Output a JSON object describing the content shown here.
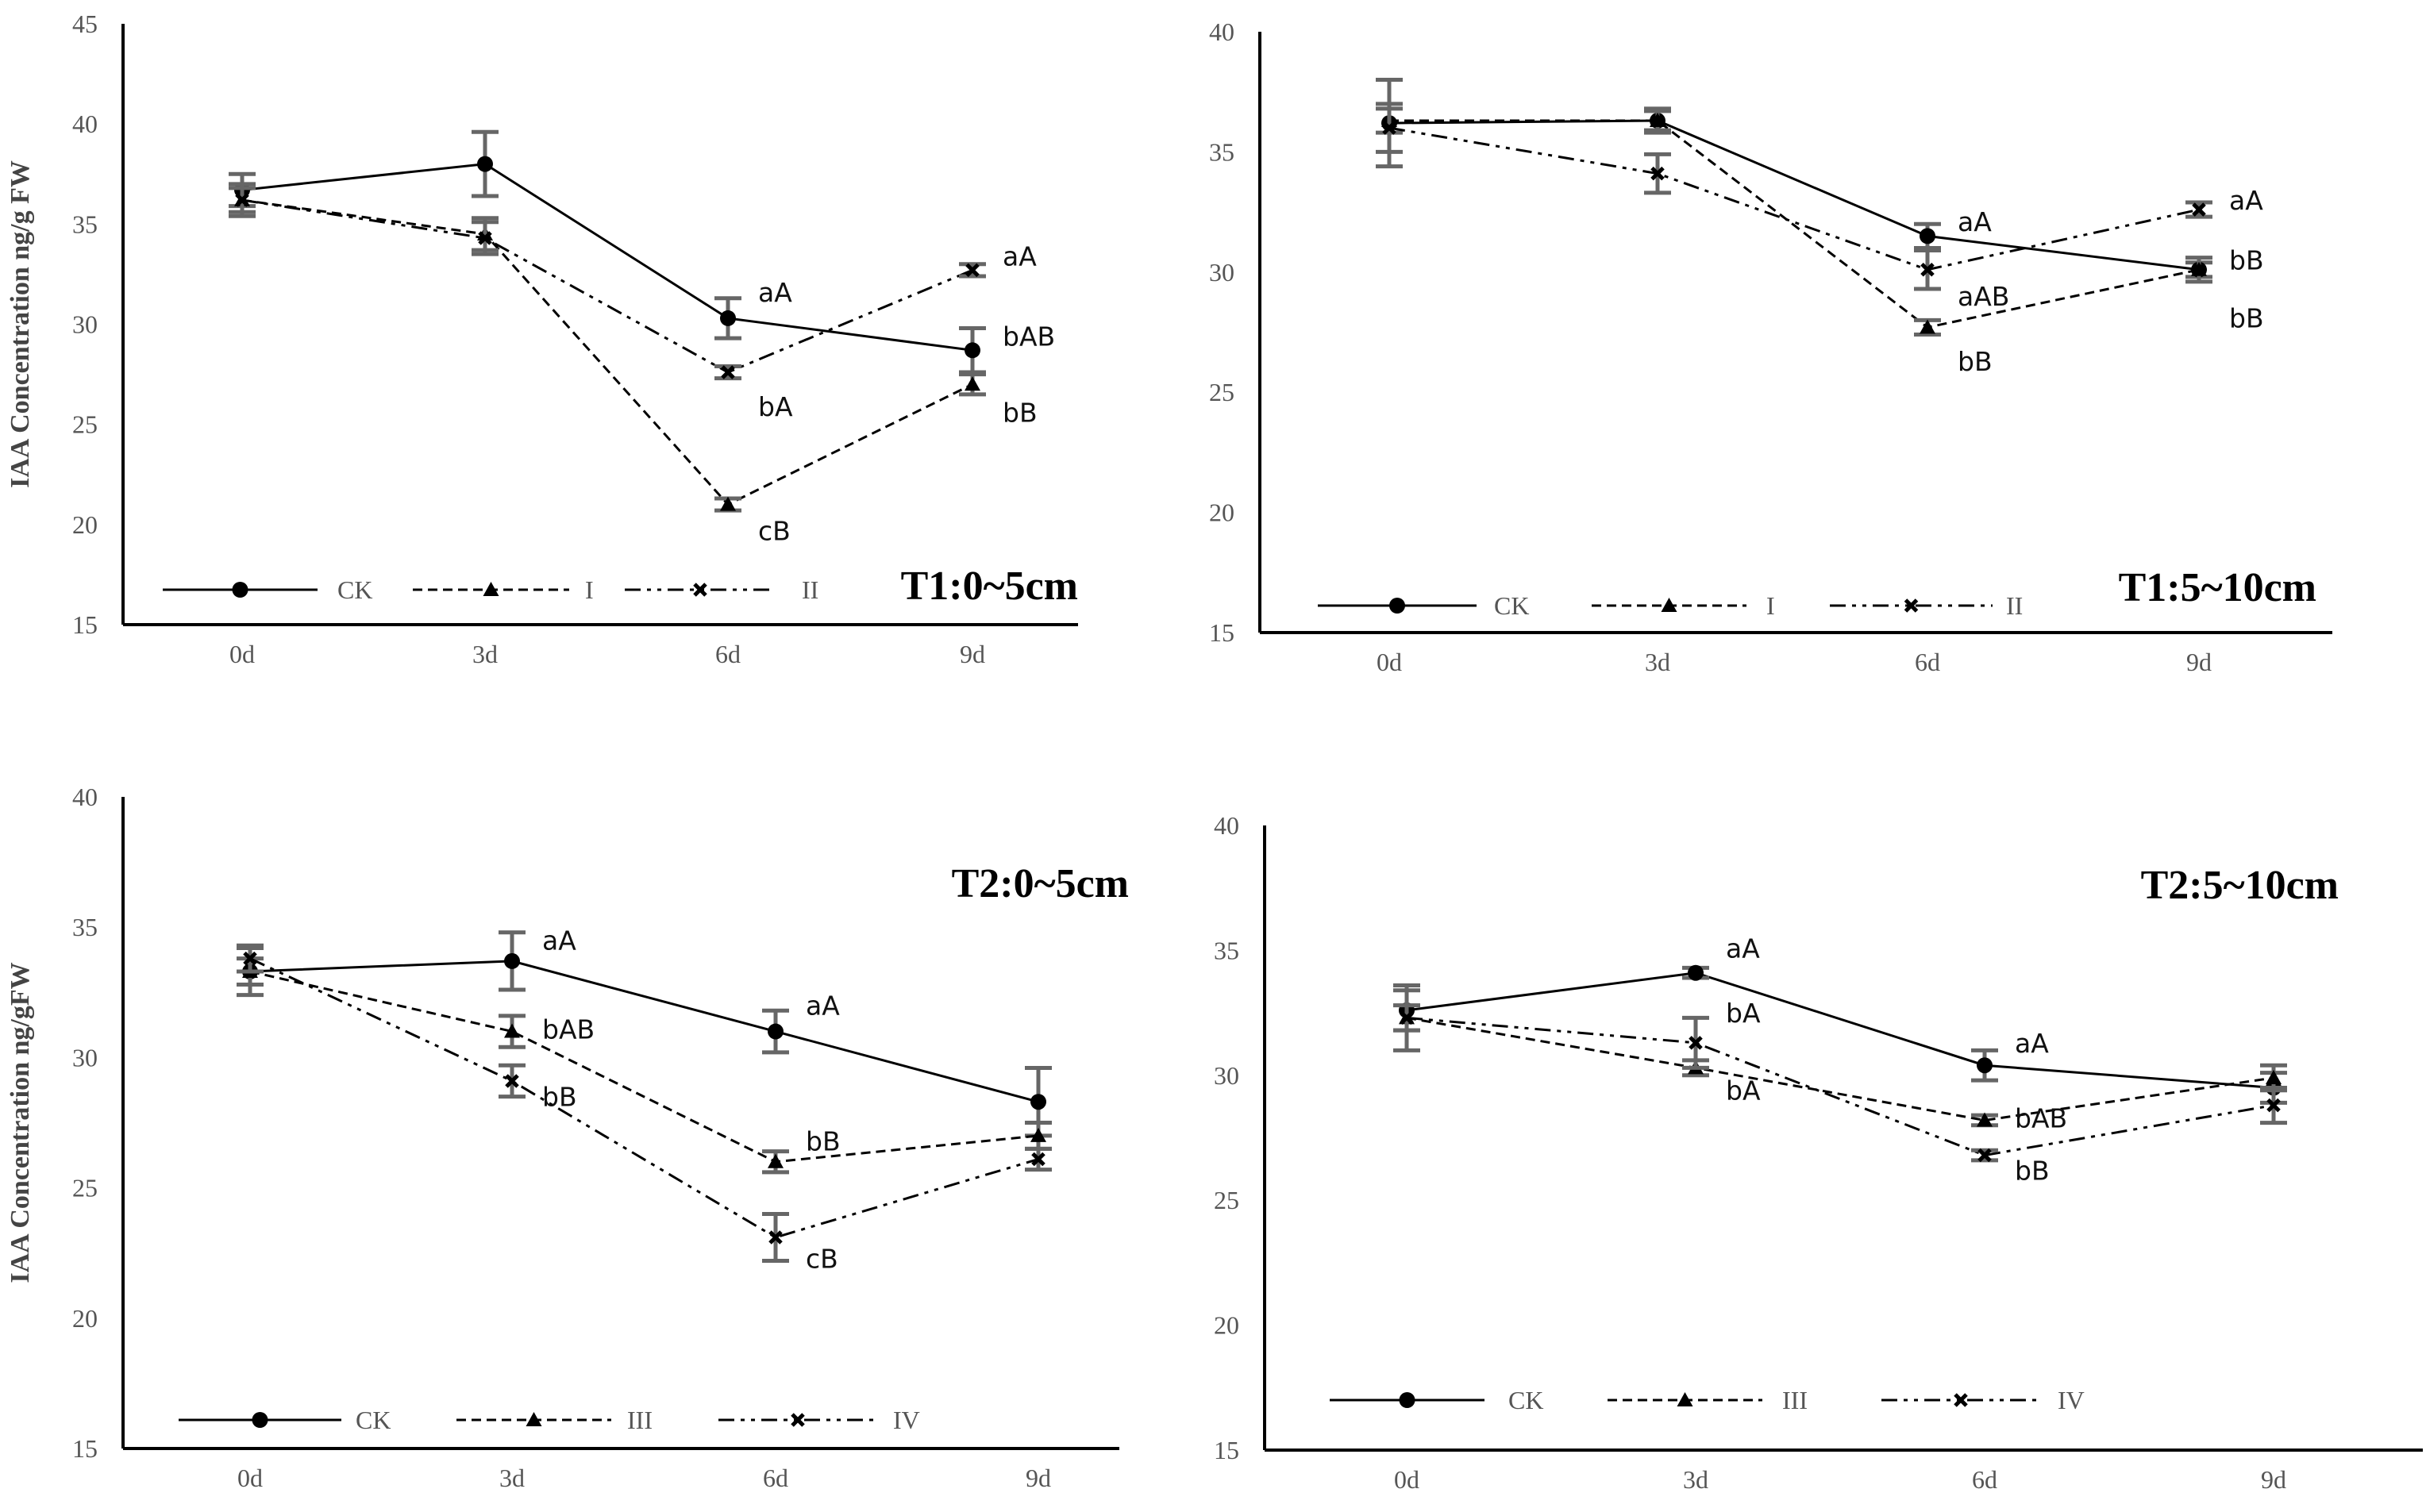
{
  "chart_data": [
    {
      "type": "line",
      "title": "T1:0~5cm",
      "ylabel": "IAA Concentration ng/g FW",
      "xlabel": "",
      "categories": [
        "0d",
        "3d",
        "6d",
        "9d"
      ],
      "yticks": [
        "15",
        "20",
        "25",
        "30",
        "35",
        "40",
        "45"
      ],
      "ylim": [
        15,
        45
      ],
      "series": [
        {
          "name": "CK",
          "values": [
            36.7,
            38.0,
            30.3,
            28.7
          ],
          "errors": [
            0.8,
            1.6,
            1.0,
            1.1
          ],
          "style": "solid",
          "marker": "circle"
        },
        {
          "name": "I",
          "values": [
            36.2,
            34.5,
            21.0,
            27.0
          ],
          "errors": [
            0.6,
            0.8,
            0.3,
            0.5
          ],
          "style": "dashed",
          "marker": "triangle"
        },
        {
          "name": "II",
          "values": [
            36.2,
            34.3,
            27.6,
            32.7
          ],
          "errors": [
            0.8,
            0.8,
            0.3,
            0.3
          ],
          "style": "dashdotdot",
          "marker": "x"
        }
      ],
      "annotations": [
        {
          "text": "aA",
          "x": 2,
          "y": 31.6
        },
        {
          "text": "bA",
          "x": 2,
          "y": 25.9
        },
        {
          "text": "cB",
          "x": 2,
          "y": 19.7
        },
        {
          "text": "aA",
          "x": 3,
          "y": 33.4
        },
        {
          "text": "bAB",
          "x": 3,
          "y": 29.4
        },
        {
          "text": "bB",
          "x": 3,
          "y": 25.6
        }
      ],
      "legend": [
        "CK",
        "I",
        "II"
      ]
    },
    {
      "type": "line",
      "title": "T1:5~10cm",
      "ylabel": "",
      "xlabel": "",
      "categories": [
        "0d",
        "3d",
        "6d",
        "9d"
      ],
      "yticks": [
        "15",
        "20",
        "25",
        "30",
        "35",
        "40"
      ],
      "ylim": [
        15,
        40
      ],
      "series": [
        {
          "name": "CK",
          "values": [
            36.2,
            36.3,
            31.5,
            30.1
          ],
          "errors": [
            1.8,
            0.5,
            0.5,
            0.3
          ],
          "style": "solid",
          "marker": "circle"
        },
        {
          "name": "I",
          "values": [
            36.3,
            36.3,
            27.7,
            30.1
          ],
          "errors": [
            0.5,
            0.4,
            0.3,
            0.5
          ],
          "style": "dashed",
          "marker": "triangle"
        },
        {
          "name": "II",
          "values": [
            36.0,
            34.1,
            30.1,
            32.6
          ],
          "errors": [
            1.0,
            0.8,
            0.8,
            0.3
          ],
          "style": "dashdotdot",
          "marker": "x"
        }
      ],
      "annotations": [
        {
          "text": "aA",
          "x": 2,
          "y": 32.1
        },
        {
          "text": "aAB",
          "x": 2,
          "y": 29.0
        },
        {
          "text": "bB",
          "x": 2,
          "y": 26.3
        },
        {
          "text": "aA",
          "x": 3,
          "y": 33.0
        },
        {
          "text": "bB",
          "x": 3,
          "y": 30.5
        },
        {
          "text": "bB",
          "x": 3,
          "y": 28.1
        }
      ],
      "legend": [
        "CK",
        "I",
        "II"
      ]
    },
    {
      "type": "line",
      "title": "T2:0~5cm",
      "ylabel": "IAA Concentration ng/gFW",
      "xlabel": "",
      "categories": [
        "0d",
        "3d",
        "6d",
        "9d"
      ],
      "yticks": [
        "15",
        "20",
        "25",
        "30",
        "35",
        "40"
      ],
      "ylim": [
        15,
        40
      ],
      "series": [
        {
          "name": "CK",
          "values": [
            33.3,
            33.7,
            31.0,
            28.3
          ],
          "errors": [
            0.5,
            1.1,
            0.8,
            1.3
          ],
          "style": "solid",
          "marker": "circle"
        },
        {
          "name": "III",
          "values": [
            33.3,
            31.0,
            26.0,
            27.0
          ],
          "errors": [
            0.9,
            0.6,
            0.4,
            0.5
          ],
          "style": "dashed",
          "marker": "triangle"
        },
        {
          "name": "IV",
          "values": [
            33.8,
            29.1,
            23.1,
            26.1
          ],
          "errors": [
            0.5,
            0.6,
            0.9,
            0.4
          ],
          "style": "dashdotdot",
          "marker": "x"
        }
      ],
      "annotations": [
        {
          "text": "aA",
          "x": 1,
          "y": 34.5
        },
        {
          "text": "bAB",
          "x": 1,
          "y": 31.1
        },
        {
          "text": "bB",
          "x": 1,
          "y": 28.5
        },
        {
          "text": "aA",
          "x": 2,
          "y": 32.0
        },
        {
          "text": "bB",
          "x": 2,
          "y": 26.8
        },
        {
          "text": "cB",
          "x": 2,
          "y": 22.3
        }
      ],
      "legend": [
        "CK",
        "III",
        "IV"
      ]
    },
    {
      "type": "line",
      "title": "T2:5~10cm",
      "ylabel": "",
      "xlabel": "",
      "categories": [
        "0d",
        "3d",
        "6d",
        "9d"
      ],
      "yticks": [
        "15",
        "20",
        "25",
        "30",
        "35",
        "40"
      ],
      "ylim": [
        15,
        40
      ],
      "series": [
        {
          "name": "CK",
          "values": [
            32.6,
            34.1,
            30.4,
            29.5
          ],
          "errors": [
            0.8,
            0.2,
            0.6,
            0.6
          ],
          "style": "solid",
          "marker": "circle"
        },
        {
          "name": "III",
          "values": [
            32.3,
            30.3,
            28.2,
            29.9
          ],
          "errors": [
            0.5,
            0.3,
            0.2,
            0.5
          ],
          "style": "dashed",
          "marker": "triangle"
        },
        {
          "name": "IV",
          "values": [
            32.3,
            31.3,
            26.8,
            28.8
          ],
          "errors": [
            1.3,
            1.0,
            0.2,
            0.7
          ],
          "style": "dashdotdot",
          "marker": "x"
        }
      ],
      "annotations": [
        {
          "text": "aA",
          "x": 1,
          "y": 35.1
        },
        {
          "text": "bA",
          "x": 1,
          "y": 32.5
        },
        {
          "text": "bA",
          "x": 1,
          "y": 29.4
        },
        {
          "text": "aA",
          "x": 2,
          "y": 31.3
        },
        {
          "text": "bAB",
          "x": 2,
          "y": 28.3
        },
        {
          "text": "bB",
          "x": 2,
          "y": 26.2
        }
      ],
      "legend": [
        "CK",
        "III",
        "IV"
      ]
    }
  ]
}
